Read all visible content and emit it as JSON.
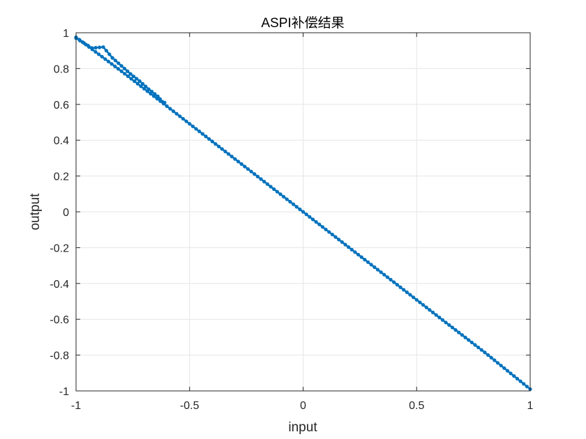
{
  "chart_data": {
    "type": "line",
    "title": "ASPI补偿结果",
    "xlabel": "input",
    "ylabel": "output",
    "xlim": [
      -1,
      1
    ],
    "ylim": [
      -1,
      1
    ],
    "grid": true,
    "legend": "none",
    "xticks": [
      "-1",
      "-0.5",
      "0",
      "0.5",
      "1"
    ],
    "yticks": [
      "-1",
      "-0.8",
      "-0.6",
      "-0.4",
      "-0.2",
      "0",
      "0.2",
      "0.4",
      "0.6",
      "0.8",
      "1"
    ],
    "colors": {
      "series": "#0072BD",
      "grid": "#E6E6E6",
      "axis": "#262626"
    },
    "series": [
      {
        "marker": "dot",
        "x": [
          -1.0,
          -0.93,
          -0.88,
          -0.84,
          -0.8,
          -0.76,
          -0.72,
          -0.68,
          -0.64,
          -0.62,
          -0.61
        ],
        "y": [
          0.97,
          0.915,
          0.92,
          0.86,
          0.815,
          0.77,
          0.73,
          0.685,
          0.645,
          0.615,
          0.61
        ]
      },
      {
        "marker": "dot",
        "x": [
          -1.0,
          -0.8,
          -0.6,
          -0.4,
          -0.2,
          0.0,
          0.2,
          0.4,
          0.6,
          0.8,
          1.0
        ],
        "y": [
          0.975,
          0.785,
          0.59,
          0.393,
          0.197,
          0.0,
          -0.197,
          -0.393,
          -0.59,
          -0.785,
          -0.99
        ]
      }
    ]
  }
}
